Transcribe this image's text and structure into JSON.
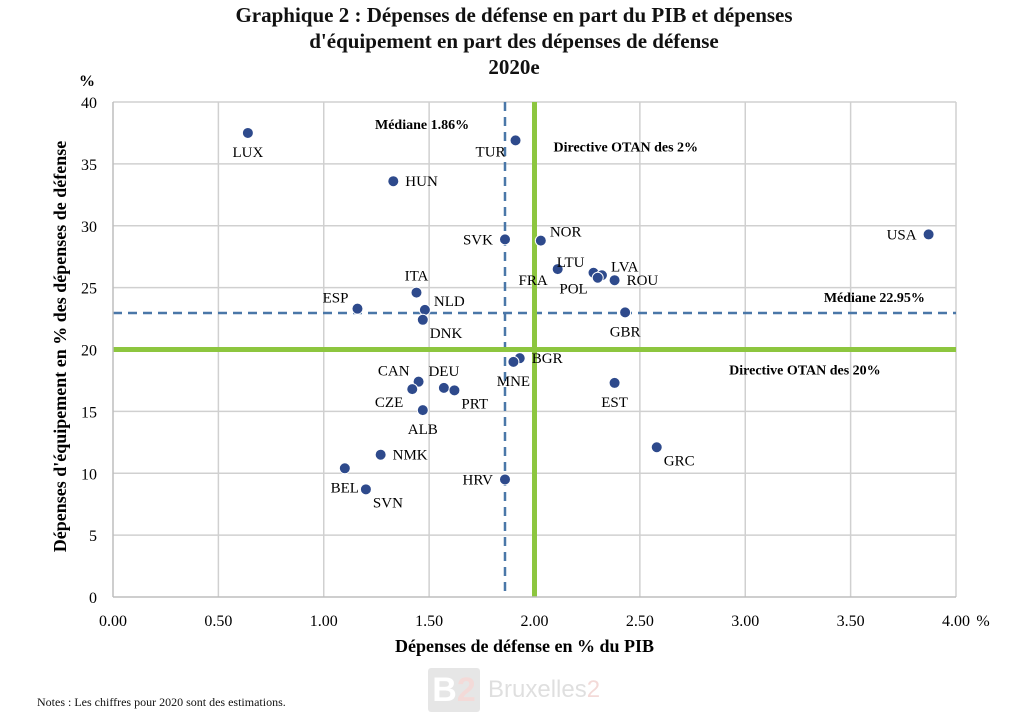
{
  "title": {
    "line1": "Graphique 2 : Dépenses de défense en part du PIB et dépenses",
    "line2": "d'équipement en part des dépenses de défense",
    "line3": "2020e"
  },
  "note": "Notes : Les chiffres pour 2020 sont des estimations.",
  "watermark": {
    "mark": "B",
    "mark_num": "2",
    "name": "Bruxelles",
    "name_num": "2"
  },
  "colors": {
    "points": "#2e4a8c",
    "nato_lines": "#8dc63f",
    "median_lines": "#4a77a8",
    "grid": "#d0d0d0"
  },
  "chart_data": {
    "type": "scatter",
    "xlabel": "Dépenses de défense en % du PIB",
    "ylabel": "Dépenses d'équipement en % des dépenses de défense",
    "x_unit": "%",
    "y_unit": "%",
    "xlim": [
      0,
      4
    ],
    "ylim": [
      0,
      40
    ],
    "x_ticks": [
      "0.00",
      "0.50",
      "1.00",
      "1.50",
      "2.00",
      "2.50",
      "3.00",
      "3.50",
      "4.00"
    ],
    "y_ticks": [
      "0",
      "5",
      "10",
      "15",
      "20",
      "25",
      "30",
      "35",
      "40"
    ],
    "grid": true,
    "points": [
      {
        "label": "LUX",
        "x": 0.64,
        "y": 37.5,
        "lpos": "below"
      },
      {
        "label": "TUR",
        "x": 1.91,
        "y": 36.9,
        "lpos": "below-left"
      },
      {
        "label": "HUN",
        "x": 1.33,
        "y": 33.6,
        "lpos": "right"
      },
      {
        "label": "SVK",
        "x": 1.86,
        "y": 28.9,
        "lpos": "left"
      },
      {
        "label": "NOR",
        "x": 2.03,
        "y": 28.8,
        "lpos": "upper-right"
      },
      {
        "label": "USA",
        "x": 3.87,
        "y": 29.3,
        "lpos": "left"
      },
      {
        "label": "FRA",
        "x": 2.11,
        "y": 26.5,
        "lpos": "below-left"
      },
      {
        "label": "LTU",
        "x": 2.28,
        "y": 26.2,
        "lpos": "upper-left"
      },
      {
        "label": "LVA",
        "x": 2.32,
        "y": 26.0,
        "lpos": "upper-right"
      },
      {
        "label": "POL",
        "x": 2.3,
        "y": 25.8,
        "lpos": "below-left"
      },
      {
        "label": "ROU",
        "x": 2.38,
        "y": 25.6,
        "lpos": "right"
      },
      {
        "label": "ITA",
        "x": 1.44,
        "y": 24.6,
        "lpos": "above"
      },
      {
        "label": "ESP",
        "x": 1.16,
        "y": 23.3,
        "lpos": "upper-left"
      },
      {
        "label": "NLD",
        "x": 1.48,
        "y": 23.2,
        "lpos": "upper-right"
      },
      {
        "label": "GBR",
        "x": 2.43,
        "y": 23.0,
        "lpos": "below"
      },
      {
        "label": "DNK",
        "x": 1.47,
        "y": 22.4,
        "lpos": "lower-right"
      },
      {
        "label": "BGR",
        "x": 1.93,
        "y": 19.3,
        "lpos": "right"
      },
      {
        "label": "MNE",
        "x": 1.9,
        "y": 19.0,
        "lpos": "below"
      },
      {
        "label": "CAN",
        "x": 1.45,
        "y": 17.4,
        "lpos": "upper-left"
      },
      {
        "label": "DEU",
        "x": 1.57,
        "y": 16.9,
        "lpos": "above"
      },
      {
        "label": "CZE",
        "x": 1.42,
        "y": 16.8,
        "lpos": "lower-left"
      },
      {
        "label": "PRT",
        "x": 1.62,
        "y": 16.7,
        "lpos": "lower-right"
      },
      {
        "label": "EST",
        "x": 2.38,
        "y": 17.3,
        "lpos": "below"
      },
      {
        "label": "ALB",
        "x": 1.47,
        "y": 15.1,
        "lpos": "below"
      },
      {
        "label": "GRC",
        "x": 2.58,
        "y": 12.1,
        "lpos": "lower-right"
      },
      {
        "label": "NMK",
        "x": 1.27,
        "y": 11.5,
        "lpos": "right"
      },
      {
        "label": "BEL",
        "x": 1.1,
        "y": 10.4,
        "lpos": "below"
      },
      {
        "label": "SVN",
        "x": 1.2,
        "y": 8.7,
        "lpos": "lower-right"
      },
      {
        "label": "HRV",
        "x": 1.86,
        "y": 9.5,
        "lpos": "left"
      }
    ],
    "reference_lines": [
      {
        "axis": "x",
        "value": 1.86,
        "style": "dashed",
        "label": "Médiane 1.86%"
      },
      {
        "axis": "y",
        "value": 22.95,
        "style": "dashed",
        "label": "Médiane 22.95%"
      },
      {
        "axis": "x",
        "value": 2.0,
        "style": "solid",
        "label": "Directive OTAN des 2%"
      },
      {
        "axis": "y",
        "value": 20,
        "style": "solid",
        "label": "Directive OTAN des 20%"
      }
    ]
  }
}
